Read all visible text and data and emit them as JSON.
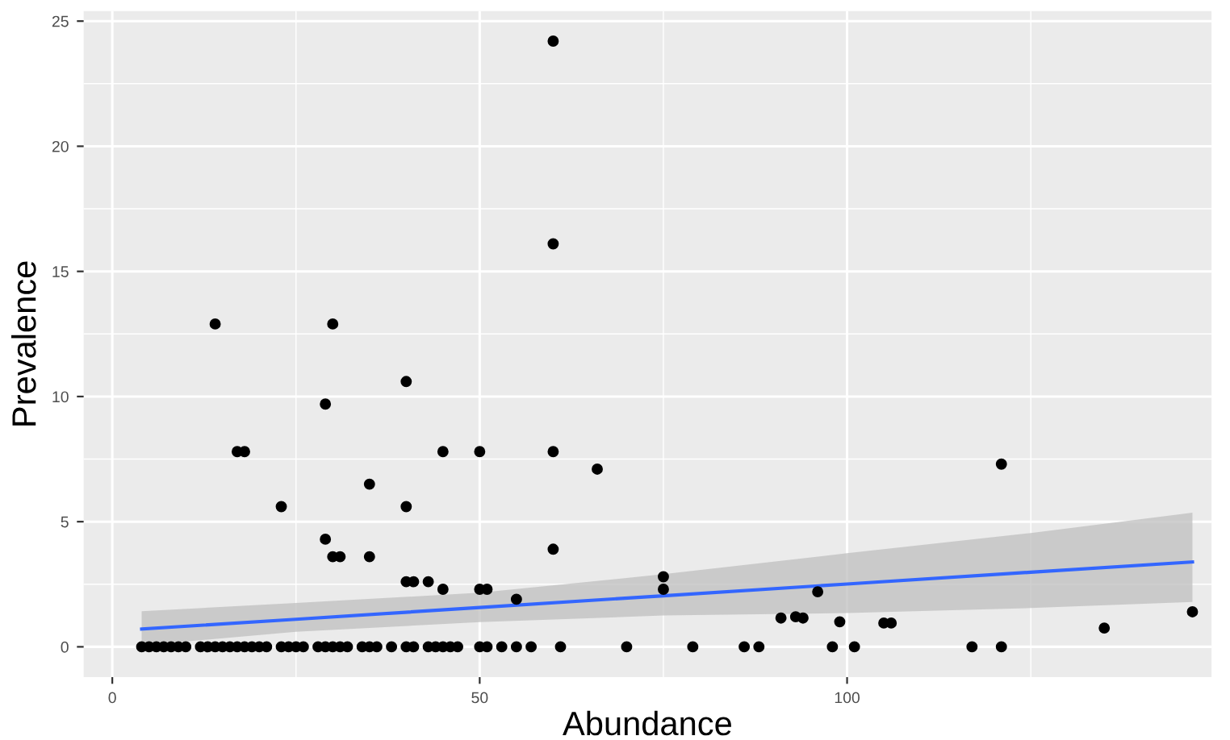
{
  "chart_data": {
    "type": "scatter",
    "xlabel": "Abundance",
    "ylabel": "Prevalence",
    "xlim": [
      -3.9,
      149.6
    ],
    "ylim": [
      -1.21,
      25.4
    ],
    "xticks": [
      0,
      50,
      100
    ],
    "yticks": [
      0,
      5,
      10,
      15,
      20,
      25
    ],
    "grid": true,
    "series": [
      {
        "marker": "circle",
        "color": "#000000",
        "x": [
          4,
          5,
          6,
          7,
          8,
          9,
          10,
          12,
          13,
          14,
          15,
          16,
          17,
          18,
          19,
          20,
          21,
          23,
          24,
          25,
          26,
          28,
          29,
          30,
          31,
          32,
          34,
          35,
          36,
          38,
          40,
          41,
          43,
          44,
          45,
          46,
          47,
          50,
          51,
          53,
          55,
          57,
          61,
          70,
          79,
          86,
          88,
          98,
          101,
          117,
          121,
          14,
          30,
          40,
          29,
          17,
          18,
          45,
          50,
          35,
          23,
          40,
          29,
          30,
          31,
          35,
          40,
          41,
          43,
          45,
          50,
          51,
          60,
          66,
          60,
          55,
          75,
          75,
          91,
          93,
          94,
          96,
          99,
          121,
          105,
          106,
          135,
          147,
          60,
          60
        ],
        "values": [
          0,
          0,
          0,
          0,
          0,
          0,
          0,
          0,
          0,
          0,
          0,
          0,
          0,
          0,
          0,
          0,
          0,
          0,
          0,
          0,
          0,
          0,
          0,
          0,
          0,
          0,
          0,
          0,
          0,
          0,
          0,
          0,
          0,
          0,
          0,
          0,
          0,
          0,
          0,
          0,
          0,
          0,
          0,
          0,
          0,
          0,
          0,
          0,
          0,
          0,
          0,
          12.9,
          12.9,
          10.6,
          9.7,
          7.8,
          7.8,
          7.8,
          7.8,
          6.5,
          5.6,
          5.6,
          4.3,
          3.6,
          3.6,
          3.6,
          2.6,
          2.6,
          2.6,
          2.3,
          2.3,
          2.3,
          7.8,
          7.1,
          3.9,
          1.9,
          2.8,
          2.3,
          1.15,
          1.2,
          1.15,
          2.2,
          1.0,
          7.3,
          0.95,
          0.95,
          0.75,
          1.4,
          24.2,
          16.1
        ]
      },
      {
        "type": "line",
        "color": "#3366ff",
        "x": [
          4,
          25,
          50,
          75,
          100,
          125,
          147
        ],
        "values": [
          0.71,
          1.1,
          1.57,
          2.04,
          2.51,
          2.98,
          3.39
        ],
        "lower": [
          0.06,
          0.6,
          0.99,
          1.25,
          1.35,
          1.55,
          1.79
        ],
        "upper": [
          1.42,
          1.75,
          2.16,
          2.9,
          3.74,
          4.55,
          5.36
        ]
      }
    ]
  }
}
